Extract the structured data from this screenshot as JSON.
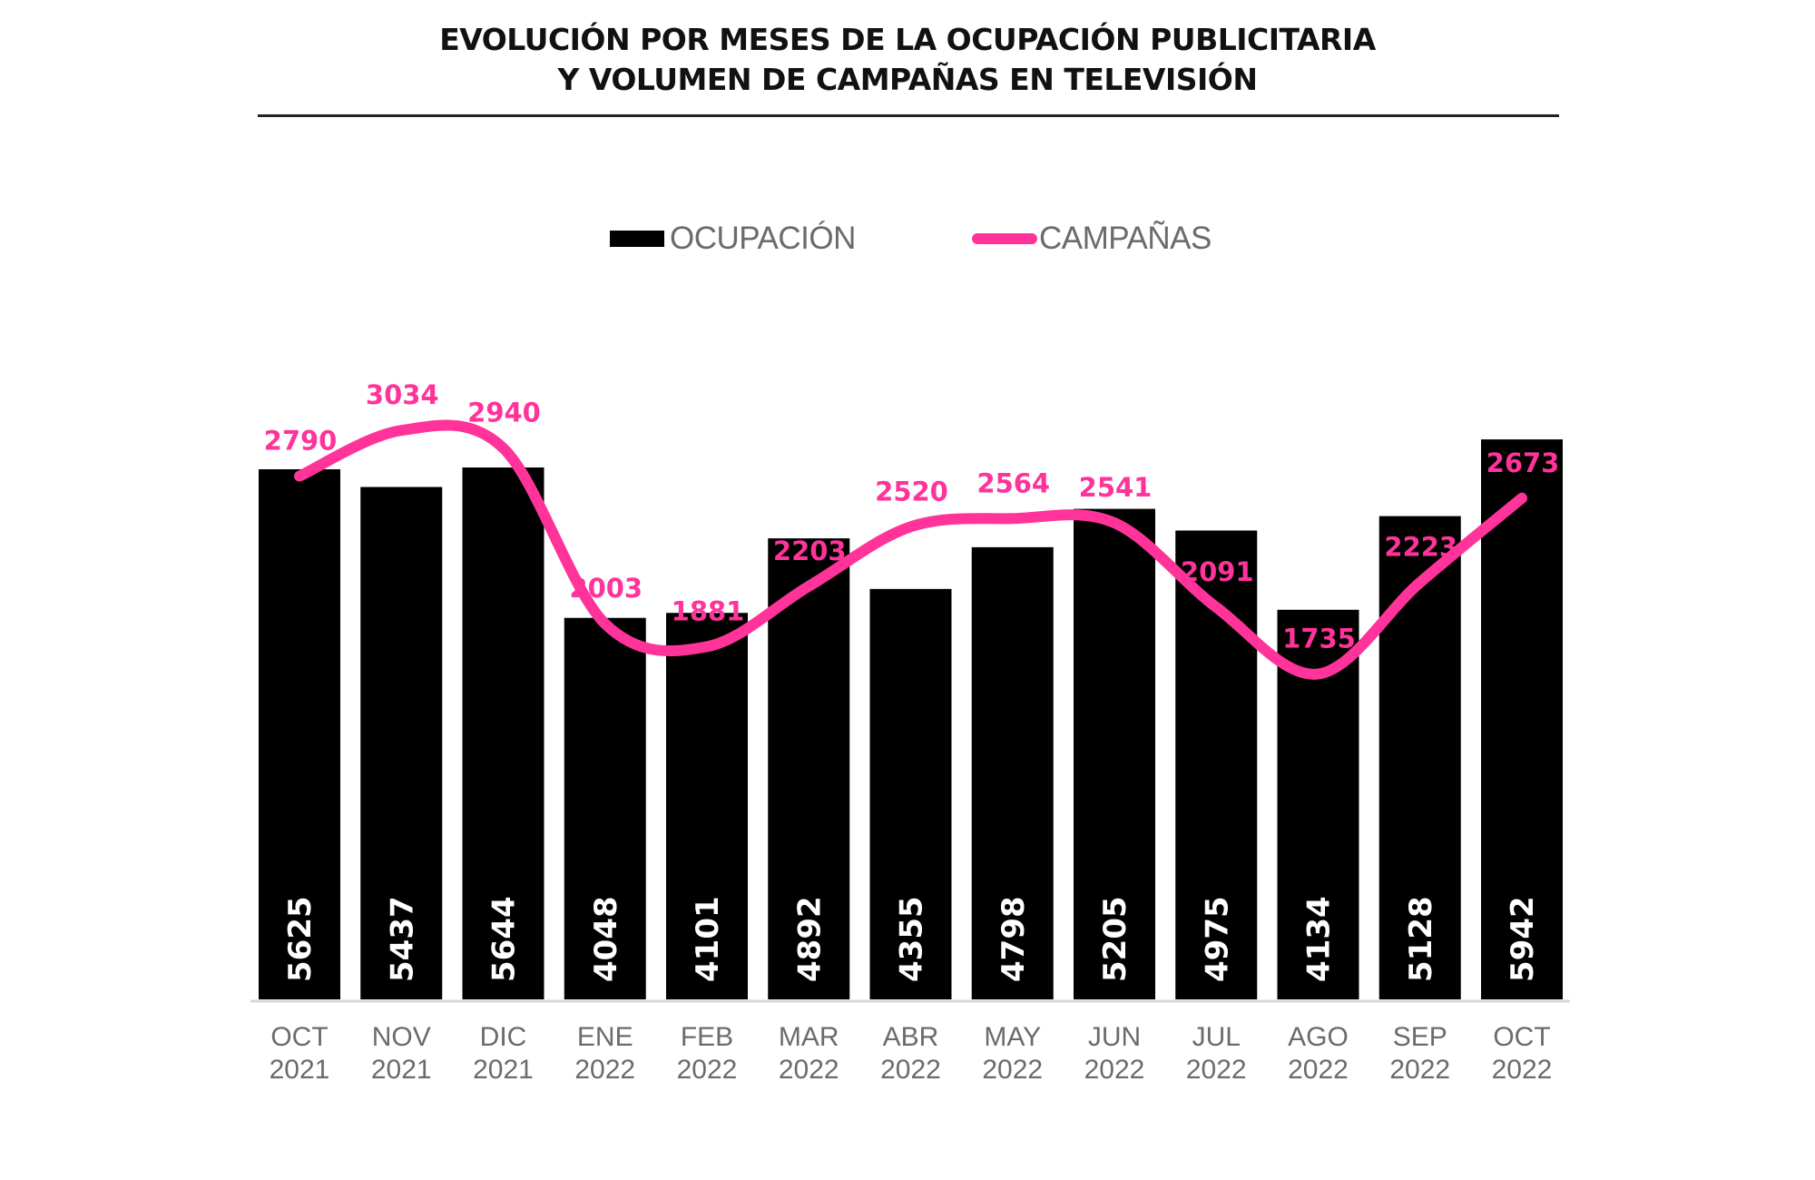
{
  "chart_data": {
    "type": "bar",
    "title": "EVOLUCIÓN POR MESES DE LA OCUPACIÓN PUBLICITARIA Y VOLUMEN DE CAMPAÑAS EN TELEVISIÓN",
    "title_lines": [
      "EVOLUCIÓN POR MESES DE LA OCUPACIÓN PUBLICITARIA",
      "Y VOLUMEN DE CAMPAÑAS EN TELEVISIÓN"
    ],
    "xlabel": "",
    "ylabel": "",
    "grid": false,
    "legend_position": "top-center",
    "categories": [
      [
        "OCT",
        "2021"
      ],
      [
        "NOV",
        "2021"
      ],
      [
        "DIC",
        "2021"
      ],
      [
        "ENE",
        "2022"
      ],
      [
        "FEB",
        "2022"
      ],
      [
        "MAR",
        "2022"
      ],
      [
        "ABR",
        "2022"
      ],
      [
        "MAY",
        "2022"
      ],
      [
        "JUN",
        "2022"
      ],
      [
        "JUL",
        "2022"
      ],
      [
        "AGO",
        "2022"
      ],
      [
        "SEP",
        "2022"
      ],
      [
        "OCT",
        "2022"
      ]
    ],
    "series": [
      {
        "name": "OCUPACIÓN",
        "type": "bar",
        "color": "#000000",
        "label_color": "#ffffff",
        "values": [
          5625,
          5437,
          5644,
          4048,
          4101,
          4892,
          4355,
          4798,
          5205,
          4975,
          4134,
          5128,
          5942
        ],
        "axis_range": [
          0,
          6000
        ]
      },
      {
        "name": "CAMPAÑAS",
        "type": "line",
        "smooth": true,
        "color": "#ff3399",
        "label_color": "#ff3399",
        "values": [
          2790,
          3034,
          2940,
          2003,
          1881,
          2203,
          2520,
          2564,
          2541,
          2091,
          1735,
          2223,
          2673
        ],
        "axis_range": [
          0,
          3050
        ]
      }
    ]
  },
  "legend": {
    "items": [
      {
        "label": "OCUPACIÓN",
        "icon": "bar-swatch",
        "color": "#000000"
      },
      {
        "label": "CAMPAÑAS",
        "icon": "line-swatch",
        "color": "#ff3399"
      }
    ]
  }
}
